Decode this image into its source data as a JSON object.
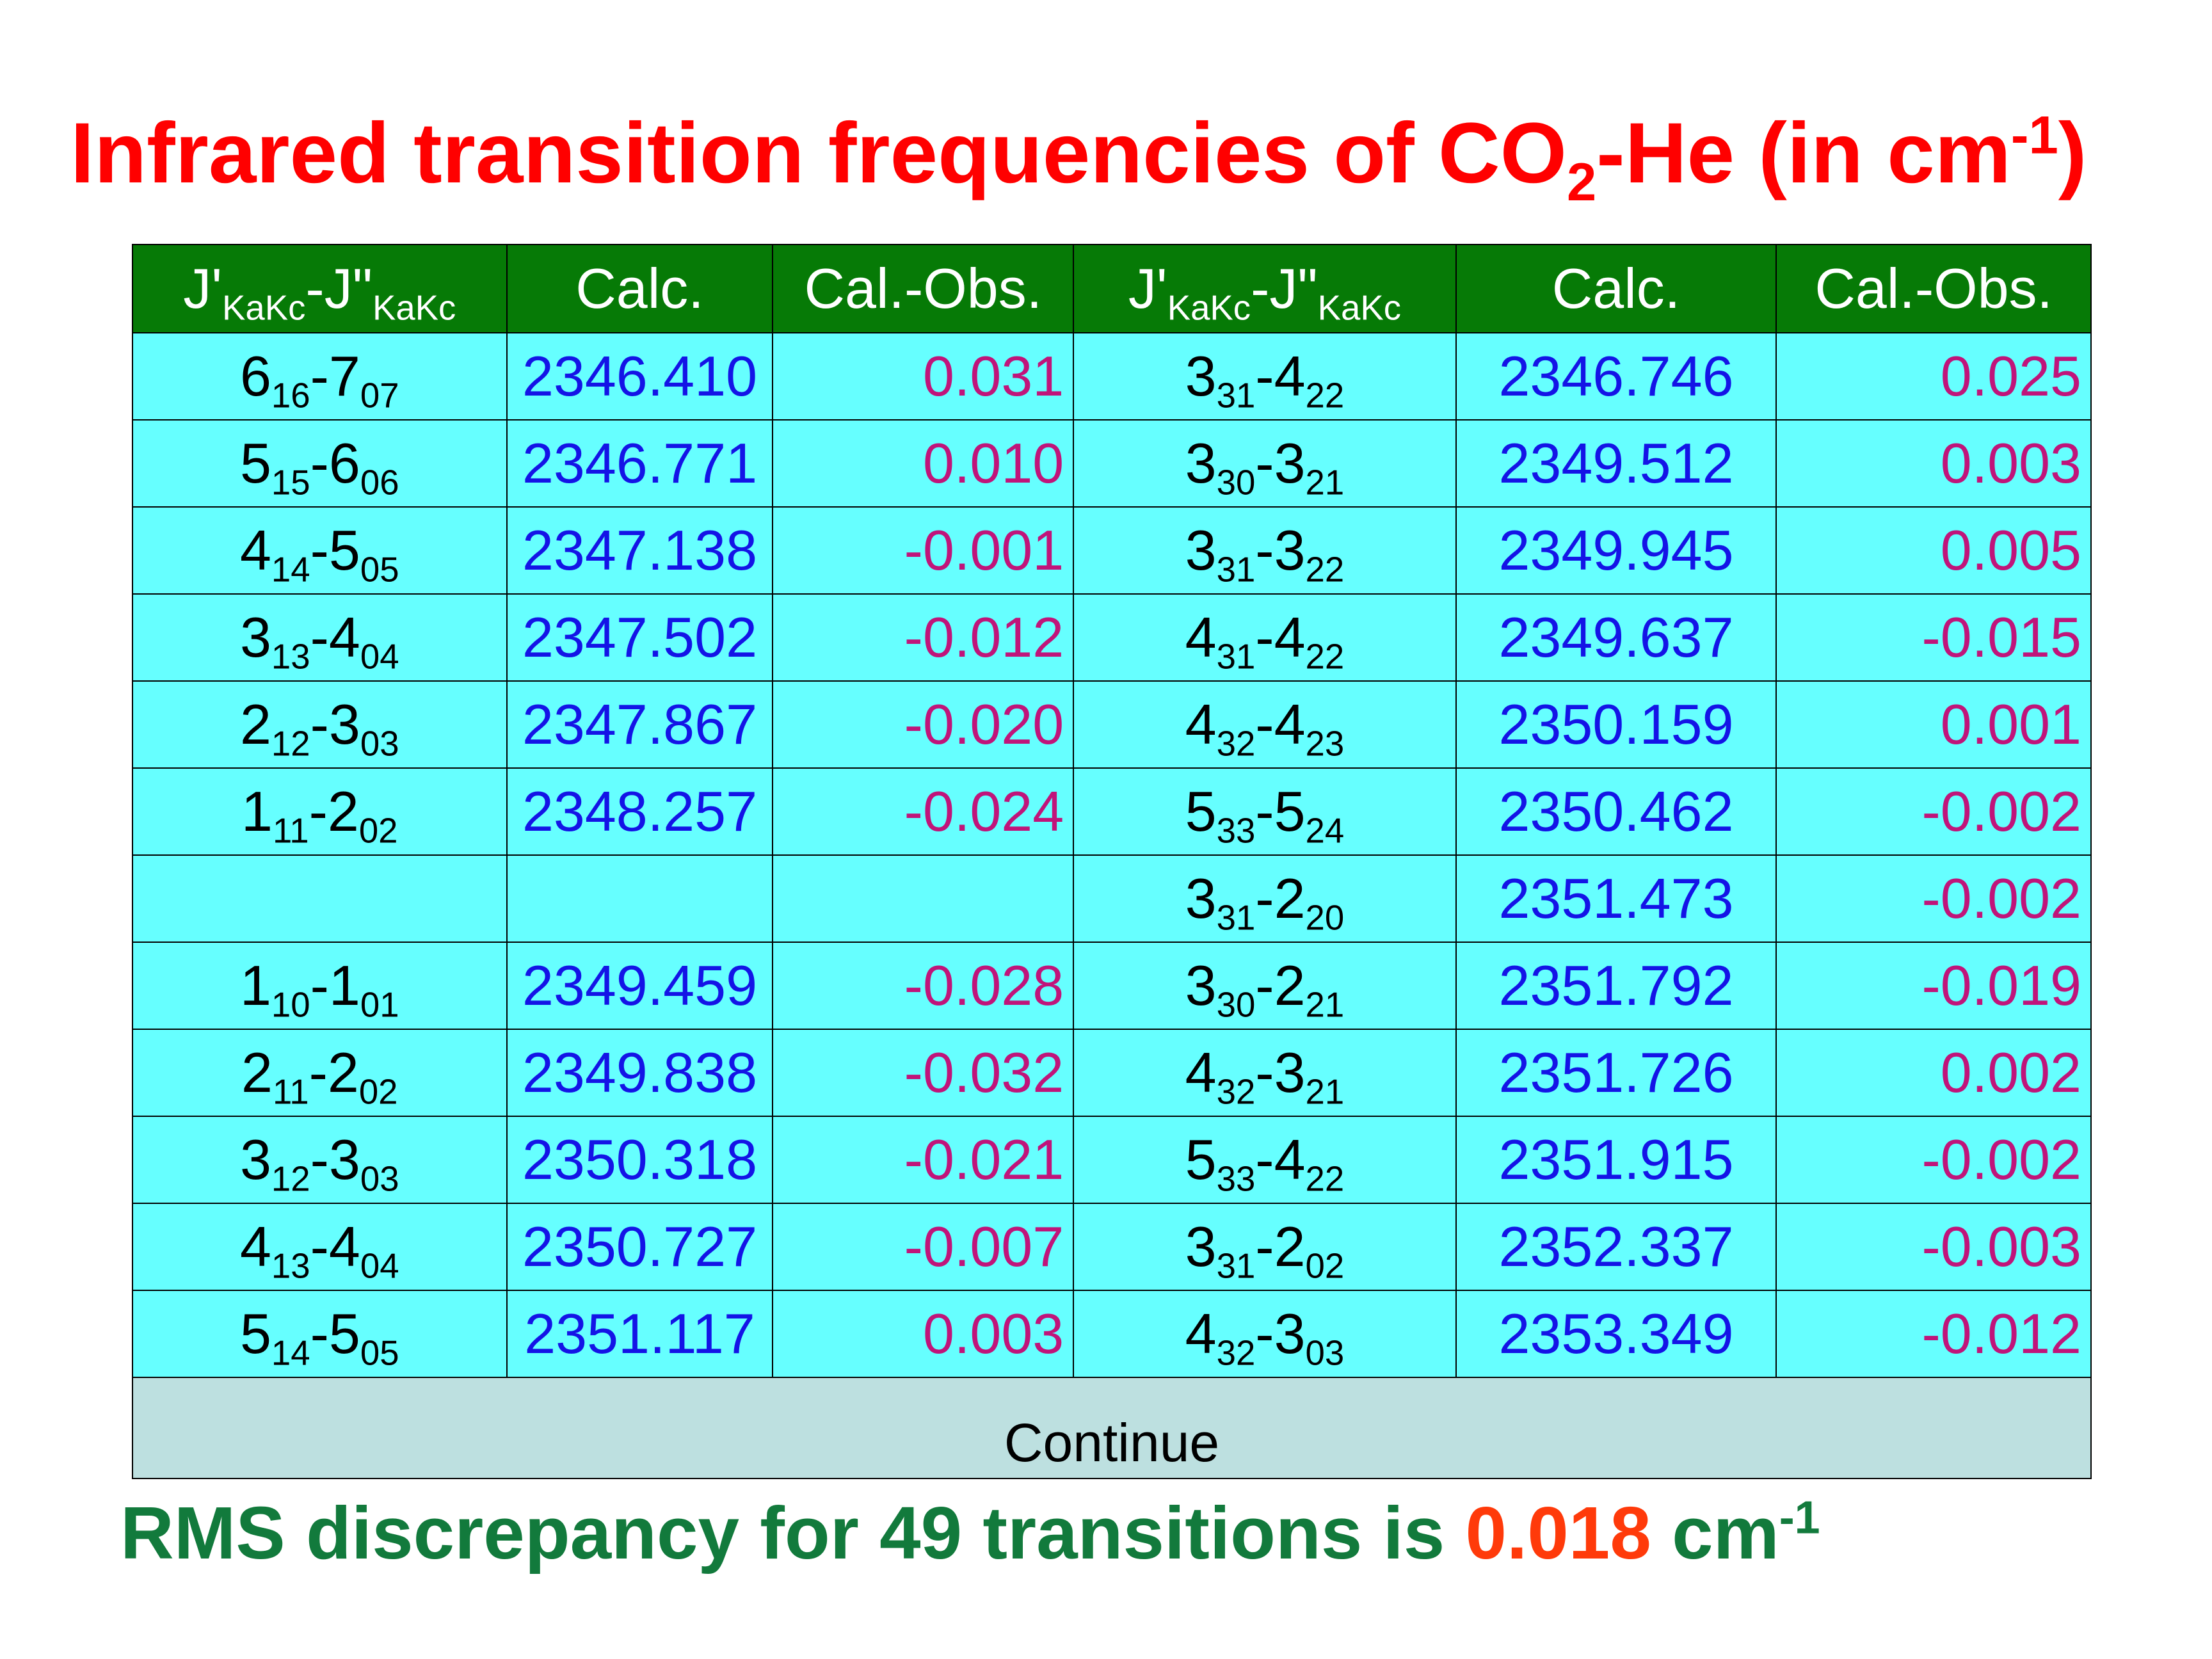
{
  "title": {
    "text": "Infrared transition frequencies of CO",
    "sub": "2",
    "text2": "-He (in cm",
    "sup": "-1",
    "text3": ")"
  },
  "table": {
    "header": [
      {
        "j1": "J'",
        "k1": "KaKc",
        "j2": "-J\"",
        "k2": "KaKc"
      },
      "Calc.",
      "Cal.-Obs.",
      {
        "j1": "J'",
        "k1": "KaKc",
        "j2": "-J\"",
        "k2": "KaKc"
      },
      "Calc.",
      "Cal.-Obs."
    ],
    "rows": [
      [
        {
          "j1": "6",
          "k1": "16",
          "j2": "-7",
          "k2": "07"
        },
        "2346.410",
        "0.031",
        {
          "j1": "3",
          "k1": "31",
          "j2": "-4",
          "k2": "22"
        },
        "2346.746",
        "0.025"
      ],
      [
        {
          "j1": "5",
          "k1": "15",
          "j2": "-6",
          "k2": "06"
        },
        "2346.771",
        "0.010",
        {
          "j1": "3",
          "k1": "30",
          "j2": "-3",
          "k2": "21"
        },
        "2349.512",
        "0.003"
      ],
      [
        {
          "j1": "4",
          "k1": "14",
          "j2": "-5",
          "k2": "05"
        },
        "2347.138",
        "-0.001",
        {
          "j1": "3",
          "k1": "31",
          "j2": "-3",
          "k2": "22"
        },
        "2349.945",
        "0.005"
      ],
      [
        {
          "j1": "3",
          "k1": "13",
          "j2": "-4",
          "k2": "04"
        },
        "2347.502",
        "-0.012",
        {
          "j1": "4",
          "k1": "31",
          "j2": "-4",
          "k2": "22"
        },
        "2349.637",
        "-0.015"
      ],
      [
        {
          "j1": "2",
          "k1": "12",
          "j2": "-3",
          "k2": "03"
        },
        "2347.867",
        "-0.020",
        {
          "j1": "4",
          "k1": "32",
          "j2": "-4",
          "k2": "23"
        },
        "2350.159",
        "0.001"
      ],
      [
        {
          "j1": "1",
          "k1": "11",
          "j2": "-2",
          "k2": "02"
        },
        "2348.257",
        "-0.024",
        {
          "j1": "5",
          "k1": "33",
          "j2": "-5",
          "k2": "24"
        },
        "2350.462",
        "-0.002"
      ],
      [
        null,
        null,
        null,
        {
          "j1": "3",
          "k1": "31",
          "j2": "-2",
          "k2": "20"
        },
        "2351.473",
        "-0.002"
      ],
      [
        {
          "j1": "1",
          "k1": "10",
          "j2": "-1",
          "k2": "01"
        },
        "2349.459",
        "-0.028",
        {
          "j1": "3",
          "k1": "30",
          "j2": "-2",
          "k2": "21"
        },
        "2351.792",
        "-0.019"
      ],
      [
        {
          "j1": "2",
          "k1": "11",
          "j2": "-2",
          "k2": "02"
        },
        "2349.838",
        "-0.032",
        {
          "j1": "4",
          "k1": "32",
          "j2": "-3",
          "k2": "21"
        },
        "2351.726",
        "0.002"
      ],
      [
        {
          "j1": "3",
          "k1": "12",
          "j2": "-3",
          "k2": "03"
        },
        "2350.318",
        "-0.021",
        {
          "j1": "5",
          "k1": "33",
          "j2": "-4",
          "k2": "22"
        },
        "2351.915",
        "-0.002"
      ],
      [
        {
          "j1": "4",
          "k1": "13",
          "j2": "-4",
          "k2": "04"
        },
        "2350.727",
        "-0.007",
        {
          "j1": "3",
          "k1": "31",
          "j2": "-2",
          "k2": "02"
        },
        "2352.337",
        "-0.003"
      ],
      [
        {
          "j1": "5",
          "k1": "14",
          "j2": "-5",
          "k2": "05"
        },
        "2351.117",
        "0.003",
        {
          "j1": "4",
          "k1": "32",
          "j2": "-3",
          "k2": "03"
        },
        "2353.349",
        "-0.012"
      ]
    ],
    "footer": "Continue"
  },
  "summary": {
    "text": "RMS discrepancy for 49 transitions is ",
    "value": "0.018",
    "unit": " cm",
    "sup": "-1"
  }
}
